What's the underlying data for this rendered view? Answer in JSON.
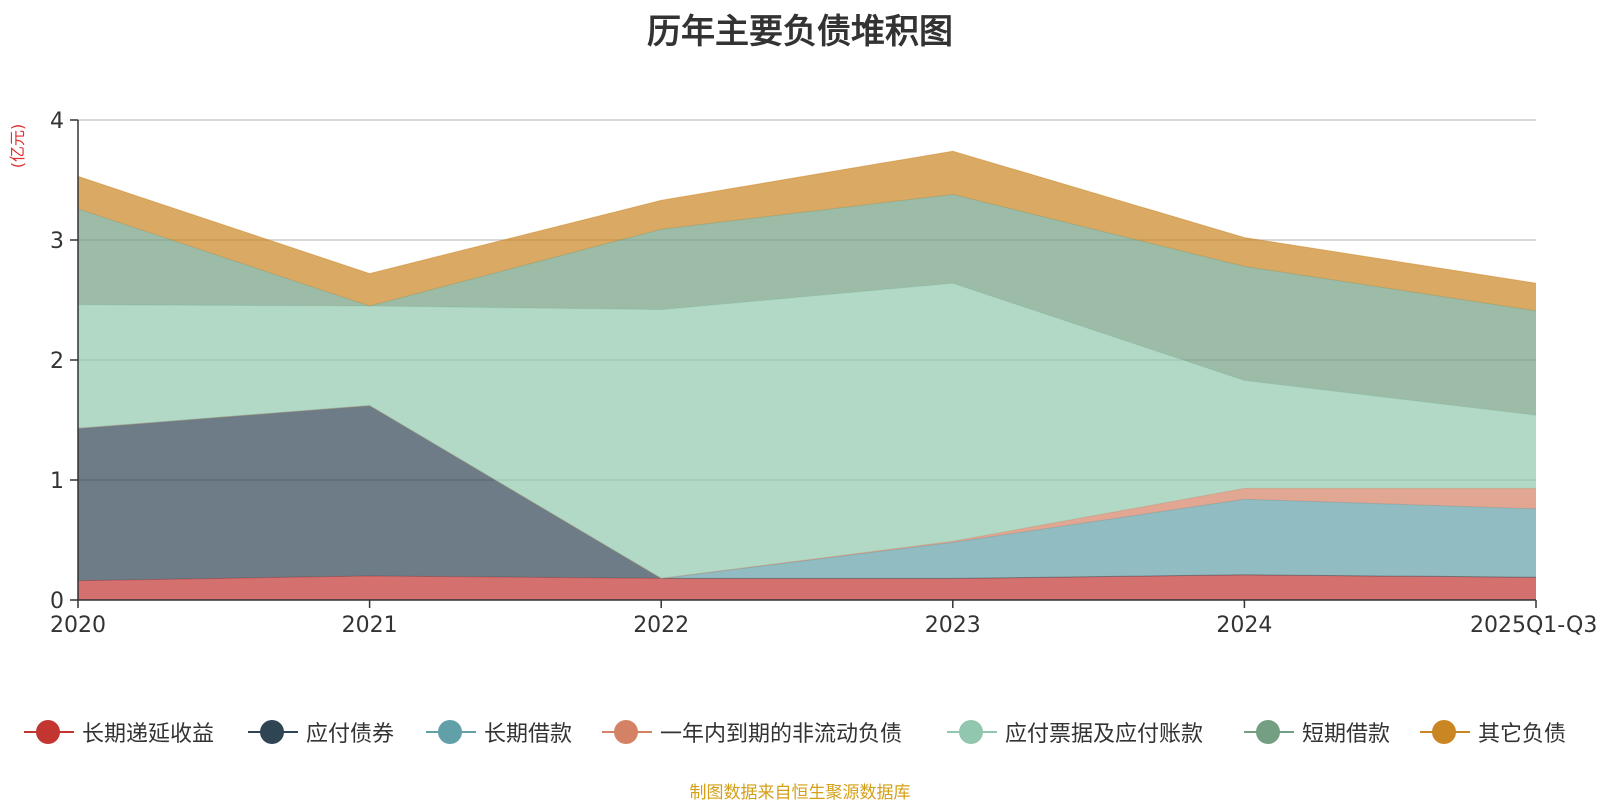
{
  "chart_data": {
    "type": "area",
    "stacked": true,
    "title": "历年主要负债堆积图",
    "ylabel": "(亿元)",
    "xlabel": "",
    "ylim": [
      0,
      4
    ],
    "yticks": [
      "0",
      "1",
      "2",
      "3",
      "4"
    ],
    "categories": [
      "2020",
      "2021",
      "2022",
      "2023",
      "2024",
      "2025Q1-Q3"
    ],
    "grid": true,
    "legend_position": "bottom",
    "series": [
      {
        "name": "长期递延收益",
        "color": "#c23531",
        "values": [
          0.16,
          0.2,
          0.18,
          0.18,
          0.21,
          0.19
        ]
      },
      {
        "name": "应付债券",
        "color": "#2f4554",
        "values": [
          1.27,
          1.42,
          0.0,
          0.0,
          0.0,
          0.0
        ]
      },
      {
        "name": "长期借款",
        "color": "#61a0a8",
        "values": [
          0.0,
          0.0,
          0.0,
          0.3,
          0.63,
          0.57
        ]
      },
      {
        "name": "一年内到期的非流动负债",
        "color": "#d48265",
        "values": [
          0.0,
          0.0,
          0.0,
          0.01,
          0.09,
          0.17
        ]
      },
      {
        "name": "应付票据及应付账款",
        "color": "#91c7ae",
        "values": [
          1.03,
          0.83,
          2.24,
          2.15,
          0.9,
          0.61
        ]
      },
      {
        "name": "短期借款",
        "color": "#749f83",
        "values": [
          0.8,
          0.0,
          0.67,
          0.74,
          0.95,
          0.87
        ]
      },
      {
        "name": "其它负债",
        "color": "#ca8622",
        "values": [
          0.27,
          0.27,
          0.24,
          0.36,
          0.24,
          0.23
        ]
      }
    ],
    "source_note": "制图数据来自恒生聚源数据库"
  }
}
